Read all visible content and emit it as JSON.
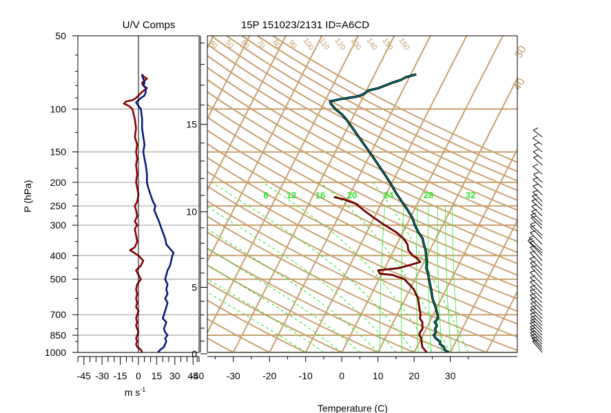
{
  "chart_data": [
    {
      "type": "line",
      "title": "U/V Comps",
      "xlabel": "m s",
      "xlabel_sup": "-1",
      "ylabel": "P (hPa)",
      "ylim": [
        1000,
        50
      ],
      "xlim": [
        -50,
        50
      ],
      "y_log_scale": true,
      "pressure_ticks": [
        "50",
        "100",
        "150",
        "200",
        "250",
        "300",
        "400",
        "500",
        "700",
        "850",
        "1000"
      ],
      "grid_pressures": [
        100,
        150,
        200,
        250,
        300,
        400,
        500,
        700,
        850,
        1000
      ],
      "x_tick_labels": [
        "-45",
        "-30",
        "-15",
        "0",
        "15",
        "30",
        "45"
      ],
      "colors": {
        "u": "#8b0000",
        "v": "#0a1a80",
        "grid": "#b0b0b0"
      },
      "series": [
        {
          "key": "u",
          "points": [
            [
              1000,
              3
            ],
            [
              975,
              2
            ],
            [
              950,
              -1
            ],
            [
              925,
              -2
            ],
            [
              900,
              -1
            ],
            [
              875,
              -2
            ],
            [
              850,
              -1
            ],
            [
              825,
              0
            ],
            [
              800,
              -1
            ],
            [
              775,
              -2
            ],
            [
              750,
              -1
            ],
            [
              725,
              -2
            ],
            [
              700,
              -1
            ],
            [
              675,
              0
            ],
            [
              650,
              -2
            ],
            [
              625,
              -1
            ],
            [
              600,
              -2
            ],
            [
              575,
              -1
            ],
            [
              550,
              -2
            ],
            [
              525,
              -1
            ],
            [
              500,
              2
            ],
            [
              480,
              0
            ],
            [
              460,
              -2
            ],
            [
              440,
              2
            ],
            [
              420,
              4
            ],
            [
              400,
              0
            ],
            [
              380,
              -7
            ],
            [
              370,
              -3
            ],
            [
              350,
              -1
            ],
            [
              330,
              -2
            ],
            [
              310,
              -3
            ],
            [
              300,
              -1
            ],
            [
              290,
              -3
            ],
            [
              275,
              -1
            ],
            [
              260,
              -2
            ],
            [
              250,
              -3
            ],
            [
              240,
              -1
            ],
            [
              225,
              0
            ],
            [
              210,
              -1
            ],
            [
              200,
              -2
            ],
            [
              185,
              -1
            ],
            [
              170,
              -2
            ],
            [
              160,
              -1
            ],
            [
              150,
              -2
            ],
            [
              140,
              -1
            ],
            [
              130,
              -3
            ],
            [
              120,
              -2
            ],
            [
              110,
              -3
            ],
            [
              105,
              -4
            ],
            [
              100,
              -5
            ],
            [
              97,
              -8
            ],
            [
              95,
              -12
            ],
            [
              93,
              -10
            ],
            [
              92,
              -5
            ],
            [
              90,
              -2
            ],
            [
              88,
              0
            ],
            [
              85,
              3
            ],
            [
              82,
              7
            ],
            [
              80,
              4
            ],
            [
              78,
              3
            ],
            [
              75,
              7
            ],
            [
              73,
              3
            ],
            [
              72,
              4
            ]
          ]
        },
        {
          "key": "v",
          "points": [
            [
              1000,
              16
            ],
            [
              975,
              18
            ],
            [
              950,
              21
            ],
            [
              925,
              22
            ],
            [
              900,
              23
            ],
            [
              875,
              22
            ],
            [
              850,
              24
            ],
            [
              825,
              22
            ],
            [
              800,
              21
            ],
            [
              775,
              22
            ],
            [
              750,
              23
            ],
            [
              725,
              20
            ],
            [
              700,
              21
            ],
            [
              675,
              22
            ],
            [
              650,
              23
            ],
            [
              625,
              24
            ],
            [
              600,
              22
            ],
            [
              575,
              24
            ],
            [
              550,
              23
            ],
            [
              525,
              24
            ],
            [
              500,
              22
            ],
            [
              480,
              23
            ],
            [
              460,
              24
            ],
            [
              440,
              26
            ],
            [
              420,
              27
            ],
            [
              400,
              28
            ],
            [
              390,
              29
            ],
            [
              380,
              27
            ],
            [
              360,
              23
            ],
            [
              340,
              22
            ],
            [
              330,
              21
            ],
            [
              310,
              19
            ],
            [
              300,
              18
            ],
            [
              290,
              17
            ],
            [
              275,
              15
            ],
            [
              260,
              13
            ],
            [
              250,
              14
            ],
            [
              240,
              12
            ],
            [
              225,
              10
            ],
            [
              210,
              8
            ],
            [
              200,
              7
            ],
            [
              185,
              7
            ],
            [
              170,
              6
            ],
            [
              160,
              5
            ],
            [
              150,
              4
            ],
            [
              140,
              5
            ],
            [
              130,
              4
            ],
            [
              120,
              3
            ],
            [
              110,
              3
            ],
            [
              100,
              2
            ],
            [
              97,
              0
            ],
            [
              94,
              -2
            ],
            [
              92,
              0
            ],
            [
              90,
              2
            ],
            [
              88,
              5
            ],
            [
              85,
              6
            ],
            [
              82,
              6
            ],
            [
              80,
              4
            ],
            [
              78,
              5
            ],
            [
              75,
              4
            ],
            [
              73,
              3
            ],
            [
              72,
              3
            ]
          ]
        }
      ]
    },
    {
      "type": "line",
      "title": "15P 151023/2131 ID=A6CD",
      "xlabel": "Temperature (C)",
      "ylim": [
        1000,
        50
      ],
      "xlim": [
        -40,
        40
      ],
      "x_tick_labels": [
        "-40",
        "-30",
        "-20",
        "-10",
        "0",
        "10",
        "20",
        "30"
      ],
      "height_km_labels": [
        "0",
        "5",
        "10",
        "15"
      ],
      "isotherm_labels": [
        "30",
        "40"
      ],
      "dry_adiabat_labels": [
        "40",
        "50",
        "60",
        "70",
        "80",
        "90",
        "100",
        "110",
        "120",
        "130",
        "140",
        "150",
        "160"
      ],
      "mixing_ratio_labels": [
        "8",
        "12",
        "16",
        "20",
        "24",
        "28",
        "32"
      ],
      "colors": {
        "grid": "#c8a070",
        "temperature": "#005a5a",
        "dewpoint": "#700000",
        "moist": "#2ee62e"
      },
      "series": [
        {
          "name": "",
          "key": "temperature",
          "points": [
            [
              1000,
              29.5
            ],
            [
              975,
              28
            ],
            [
              950,
              27.5
            ],
            [
              925,
              26
            ],
            [
              900,
              25.5
            ],
            [
              875,
              24
            ],
            [
              850,
              23
            ],
            [
              825,
              23.2
            ],
            [
              800,
              22.5
            ],
            [
              775,
              22.5
            ],
            [
              750,
              21.5
            ],
            [
              725,
              21.8
            ],
            [
              700,
              21.2
            ],
            [
              650,
              19.5
            ],
            [
              600,
              17.5
            ],
            [
              550,
              15.8
            ],
            [
              500,
              13.8
            ],
            [
              475,
              12.8
            ],
            [
              450,
              11.5
            ],
            [
              425,
              10.8
            ],
            [
              400,
              9.7
            ],
            [
              380,
              8.8
            ],
            [
              360,
              7.5
            ],
            [
              340,
              6.3
            ],
            [
              320,
              4.2
            ],
            [
              300,
              2.3
            ],
            [
              280,
              0.6
            ],
            [
              260,
              -1.8
            ],
            [
              240,
              -4.6
            ],
            [
              220,
              -7.6
            ],
            [
              200,
              -10.6
            ],
            [
              180,
              -14.2
            ],
            [
              160,
              -18.3
            ],
            [
              140,
              -23
            ],
            [
              120,
              -28.5
            ],
            [
              110,
              -31.6
            ],
            [
              105,
              -33.5
            ],
            [
              100,
              -36
            ],
            [
              95,
              -38
            ],
            [
              93,
              -38.5
            ],
            [
              91,
              -36
            ],
            [
              90,
              -34
            ],
            [
              89,
              -32
            ],
            [
              88,
              -31
            ],
            [
              86,
              -30
            ],
            [
              84,
              -29.5
            ],
            [
              82,
              -27
            ],
            [
              80,
              -25.5
            ],
            [
              78,
              -24
            ],
            [
              76,
              -22
            ],
            [
              74,
              -21
            ],
            [
              72,
              -18.5
            ]
          ]
        },
        {
          "name": "",
          "key": "dewpoint",
          "points": [
            [
              1000,
              23.5
            ],
            [
              975,
              22.5
            ],
            [
              950,
              21.5
            ],
            [
              925,
              21
            ],
            [
              900,
              20.5
            ],
            [
              875,
              20
            ],
            [
              850,
              19
            ],
            [
              825,
              18.8
            ],
            [
              800,
              19
            ],
            [
              775,
              18.5
            ],
            [
              750,
              18
            ],
            [
              725,
              16.8
            ],
            [
              700,
              16.5
            ],
            [
              650,
              15
            ],
            [
              600,
              13.5
            ],
            [
              550,
              11
            ],
            [
              500,
              7
            ],
            [
              480,
              3
            ],
            [
              475,
              -0.5
            ],
            [
              460,
              -1.5
            ],
            [
              450,
              4
            ],
            [
              435,
              7
            ],
            [
              425,
              9
            ],
            [
              410,
              7.5
            ],
            [
              400,
              6
            ],
            [
              380,
              4
            ],
            [
              360,
              3
            ],
            [
              340,
              1
            ],
            [
              320,
              -2
            ],
            [
              300,
              -6
            ],
            [
              280,
              -10
            ],
            [
              260,
              -14
            ],
            [
              245,
              -17
            ],
            [
              235,
              -21
            ],
            [
              230,
              -24
            ]
          ]
        }
      ]
    }
  ]
}
